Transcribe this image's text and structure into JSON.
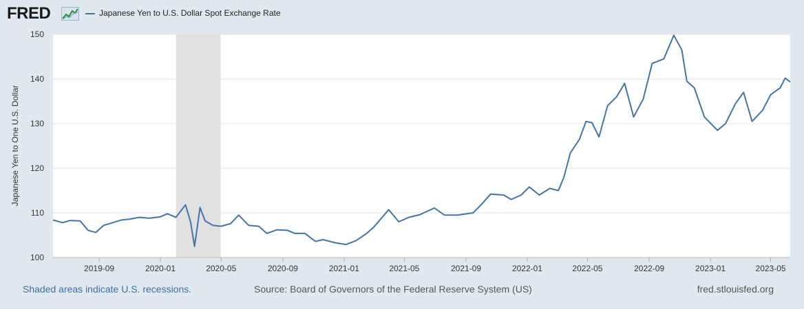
{
  "header": {
    "logo_text": "FRED",
    "legend_label": "Japanese Yen to U.S. Dollar Spot Exchange Rate"
  },
  "footer": {
    "recessions_note": "Shaded areas indicate U.S. recessions.",
    "source": "Source: Board of Governors of the Federal Reserve System (US)",
    "site": "fred.stlouisfed.org"
  },
  "colors": {
    "line": "#4572a7",
    "recession": "#e1e1e1",
    "background": "#e1e9f0",
    "grid": "#e3e3e3"
  },
  "chart_data": {
    "type": "line",
    "xlabel": "",
    "ylabel": "Japanese Yen to One U.S. Dollar",
    "xlim": [
      "2019-06-01",
      "2023-06-09"
    ],
    "ylim": [
      100,
      150
    ],
    "y_ticks": [
      100,
      110,
      120,
      130,
      140,
      150
    ],
    "x_ticks": [
      "2019-09",
      "2020-01",
      "2020-05",
      "2020-09",
      "2021-01",
      "2021-05",
      "2021-09",
      "2022-01",
      "2022-05",
      "2022-09",
      "2023-01",
      "2023-05"
    ],
    "grid": true,
    "legend_position": "top-left",
    "recessions": [
      {
        "start": "2020-02-01",
        "end": "2020-04-30"
      }
    ],
    "series": [
      {
        "name": "Japanese Yen to U.S. Dollar Spot Exchange Rate",
        "points": [
          [
            "2019-06-01",
            108.4
          ],
          [
            "2019-06-20",
            107.8
          ],
          [
            "2019-07-05",
            108.3
          ],
          [
            "2019-07-25",
            108.2
          ],
          [
            "2019-08-10",
            106.1
          ],
          [
            "2019-08-25",
            105.6
          ],
          [
            "2019-09-10",
            107.2
          ],
          [
            "2019-09-28",
            107.8
          ],
          [
            "2019-10-15",
            108.4
          ],
          [
            "2019-11-01",
            108.6
          ],
          [
            "2019-11-20",
            109.0
          ],
          [
            "2019-12-10",
            108.8
          ],
          [
            "2019-12-31",
            109.1
          ],
          [
            "2020-01-15",
            109.8
          ],
          [
            "2020-02-01",
            109.0
          ],
          [
            "2020-02-20",
            111.8
          ],
          [
            "2020-03-01",
            108.0
          ],
          [
            "2020-03-09",
            102.5
          ],
          [
            "2020-03-20",
            111.2
          ],
          [
            "2020-03-30",
            108.2
          ],
          [
            "2020-04-15",
            107.2
          ],
          [
            "2020-05-01",
            107.0
          ],
          [
            "2020-05-20",
            107.6
          ],
          [
            "2020-06-05",
            109.5
          ],
          [
            "2020-06-25",
            107.2
          ],
          [
            "2020-07-15",
            107.0
          ],
          [
            "2020-07-31",
            105.4
          ],
          [
            "2020-08-20",
            106.2
          ],
          [
            "2020-09-10",
            106.1
          ],
          [
            "2020-09-25",
            105.4
          ],
          [
            "2020-10-15",
            105.4
          ],
          [
            "2020-11-05",
            103.6
          ],
          [
            "2020-11-20",
            104.0
          ],
          [
            "2020-12-15",
            103.3
          ],
          [
            "2021-01-05",
            102.9
          ],
          [
            "2021-01-25",
            103.8
          ],
          [
            "2021-02-15",
            105.4
          ],
          [
            "2021-03-01",
            106.8
          ],
          [
            "2021-03-31",
            110.7
          ],
          [
            "2021-04-20",
            108.0
          ],
          [
            "2021-05-10",
            109.0
          ],
          [
            "2021-06-01",
            109.6
          ],
          [
            "2021-06-30",
            111.1
          ],
          [
            "2021-07-20",
            109.5
          ],
          [
            "2021-08-15",
            109.5
          ],
          [
            "2021-09-15",
            110.0
          ],
          [
            "2021-10-01",
            111.8
          ],
          [
            "2021-10-20",
            114.2
          ],
          [
            "2021-11-15",
            114.0
          ],
          [
            "2021-11-30",
            113.0
          ],
          [
            "2021-12-20",
            114.0
          ],
          [
            "2022-01-05",
            115.8
          ],
          [
            "2022-01-25",
            114.0
          ],
          [
            "2022-02-15",
            115.5
          ],
          [
            "2022-03-04",
            115.0
          ],
          [
            "2022-03-15",
            118.0
          ],
          [
            "2022-03-28",
            123.5
          ],
          [
            "2022-04-15",
            126.5
          ],
          [
            "2022-04-28",
            130.5
          ],
          [
            "2022-05-10",
            130.2
          ],
          [
            "2022-05-24",
            127.0
          ],
          [
            "2022-06-10",
            134.0
          ],
          [
            "2022-06-28",
            136.0
          ],
          [
            "2022-07-14",
            139.0
          ],
          [
            "2022-08-01",
            131.5
          ],
          [
            "2022-08-20",
            135.5
          ],
          [
            "2022-09-07",
            143.5
          ],
          [
            "2022-09-30",
            144.5
          ],
          [
            "2022-10-20",
            149.8
          ],
          [
            "2022-11-05",
            146.5
          ],
          [
            "2022-11-15",
            139.5
          ],
          [
            "2022-11-30",
            138.0
          ],
          [
            "2022-12-20",
            131.5
          ],
          [
            "2023-01-15",
            128.5
          ],
          [
            "2023-01-31",
            130.0
          ],
          [
            "2023-02-20",
            134.5
          ],
          [
            "2023-03-08",
            137.0
          ],
          [
            "2023-03-25",
            130.5
          ],
          [
            "2023-04-15",
            133.0
          ],
          [
            "2023-05-01",
            136.5
          ],
          [
            "2023-05-20",
            138.0
          ],
          [
            "2023-05-30",
            140.2
          ],
          [
            "2023-06-09",
            139.3
          ]
        ]
      }
    ]
  }
}
